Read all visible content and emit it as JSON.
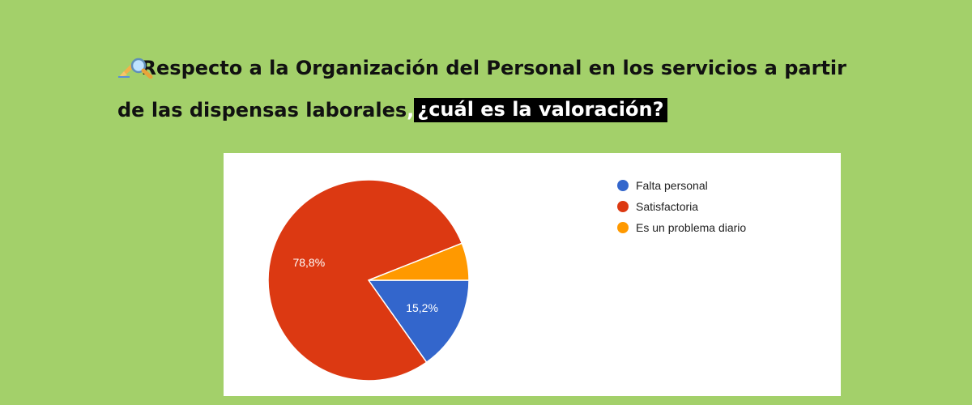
{
  "headline": {
    "line1": "Respecto a la Organización del Personal en los servicios a partir",
    "line2_plain": "de las dispensas laborales",
    "line2_comma": ",",
    "line2_highlight": " ¿cuál es la valoración?",
    "icons": [
      "writing-hand-icon",
      "magnifying-glass-icon"
    ]
  },
  "chart_data": {
    "type": "pie",
    "categories": [
      "Falta personal",
      "Satisfactoria",
      "Es un problema diario"
    ],
    "values": [
      15.2,
      78.8,
      6.0
    ],
    "data_labels": [
      "15,2%",
      "78,8%",
      ""
    ],
    "colors": [
      "#3366cc",
      "#dc3912",
      "#ff9900"
    ],
    "start_angle_deg": 0,
    "legend_position": "right"
  },
  "colors": {
    "background": "#a3d06a",
    "panel": "#ffffff",
    "highlight_bg": "#000000"
  }
}
